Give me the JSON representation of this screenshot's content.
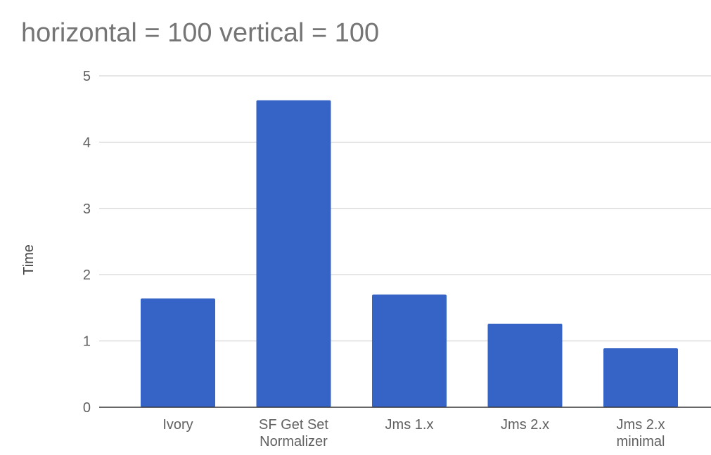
{
  "chart_data": {
    "type": "bar",
    "title": "horizontal = 100 vertical = 100",
    "xlabel": "",
    "ylabel": "Time",
    "categories": [
      "Ivory",
      "SF Get Set Normalizer",
      "Jms 1.x",
      "Jms 2.x",
      "Jms 2.x minimal"
    ],
    "category_lines": [
      [
        "Ivory"
      ],
      [
        "SF Get Set",
        "Normalizer"
      ],
      [
        "Jms 1.x"
      ],
      [
        "Jms 2.x"
      ],
      [
        "Jms 2.x",
        "minimal"
      ]
    ],
    "values": [
      1.64,
      4.63,
      1.7,
      1.26,
      0.89
    ],
    "ylim": [
      0,
      5
    ],
    "yticks": [
      0,
      1,
      2,
      3,
      4,
      5
    ],
    "grid": true,
    "legend": "none",
    "bar_color": "#3563C6"
  }
}
